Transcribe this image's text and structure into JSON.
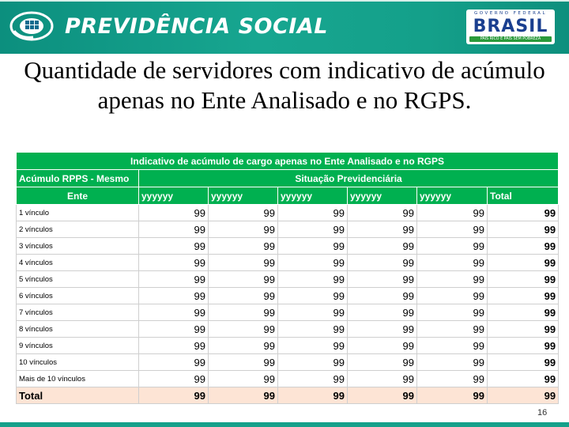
{
  "header": {
    "brand_title": "PREVIDÊNCIA SOCIAL",
    "gov_top": "GOVERNO FEDERAL",
    "gov_word": "BRASIL",
    "gov_slogan": "PAÍS RICO É PAÍS SEM POBREZA",
    "colors": {
      "banner": "#14a08a",
      "table_header": "#00b050",
      "total_row": "#fde4d5"
    }
  },
  "slide": {
    "title": "Quantidade de servidores com indicativo de acúmulo apenas no Ente Analisado e no RGPS.",
    "page_number": "16"
  },
  "table": {
    "title": "Indicativo de acúmulo de cargo apenas no Ente Analisado e no RGPS",
    "row_header_line1": "Acúmulo RPPS - Mesmo",
    "row_header_line2": "Ente",
    "group_header": "Situação Previdenciária",
    "columns": [
      "yyyyyy",
      "yyyyyy",
      "yyyyyy",
      "yyyyyy",
      "yyyyyy",
      "Total"
    ],
    "rows": [
      {
        "label": "1 vínculo",
        "values": [
          "99",
          "99",
          "99",
          "99",
          "99",
          "99"
        ]
      },
      {
        "label": "2 vínculos",
        "values": [
          "99",
          "99",
          "99",
          "99",
          "99",
          "99"
        ]
      },
      {
        "label": "3 vínculos",
        "values": [
          "99",
          "99",
          "99",
          "99",
          "99",
          "99"
        ]
      },
      {
        "label": "4 vínculos",
        "values": [
          "99",
          "99",
          "99",
          "99",
          "99",
          "99"
        ]
      },
      {
        "label": "5 vínculos",
        "values": [
          "99",
          "99",
          "99",
          "99",
          "99",
          "99"
        ]
      },
      {
        "label": "6 vínculos",
        "values": [
          "99",
          "99",
          "99",
          "99",
          "99",
          "99"
        ]
      },
      {
        "label": "7 vínculos",
        "values": [
          "99",
          "99",
          "99",
          "99",
          "99",
          "99"
        ]
      },
      {
        "label": "8  vínculos",
        "values": [
          "99",
          "99",
          "99",
          "99",
          "99",
          "99"
        ]
      },
      {
        "label": "9 vínculos",
        "values": [
          "99",
          "99",
          "99",
          "99",
          "99",
          "99"
        ]
      },
      {
        "label": "10 vínculos",
        "values": [
          "99",
          "99",
          "99",
          "99",
          "99",
          "99"
        ]
      },
      {
        "label": "Mais de 10 vínculos",
        "values": [
          "99",
          "99",
          "99",
          "99",
          "99",
          "99"
        ]
      }
    ],
    "total_row": {
      "label": "Total",
      "values": [
        "99",
        "99",
        "99",
        "99",
        "99",
        "99"
      ]
    }
  }
}
